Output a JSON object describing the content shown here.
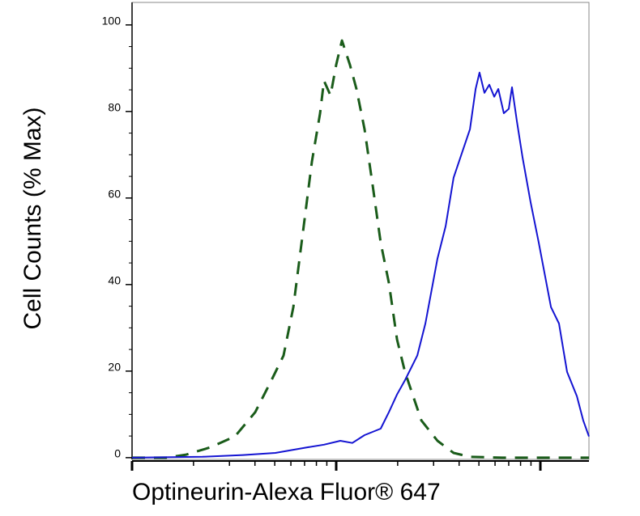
{
  "chart_data": {
    "type": "line",
    "xlabel": "Optineurin-Alexa Fluor® 647",
    "ylabel": "Cell Counts (% Max)",
    "xlim": [
      0,
      2.238
    ],
    "xticks": [
      0,
      1,
      2
    ],
    "xtick_labels": false,
    "xminorticks": [
      0.301,
      0.477,
      0.602,
      0.699,
      0.778,
      0.845,
      0.903,
      0.954,
      1.301,
      1.477,
      1.602,
      1.699,
      1.778,
      1.845,
      1.903,
      1.954
    ],
    "ylim": [
      -0.4,
      105.2
    ],
    "yticks": [
      0,
      20,
      40,
      60,
      80,
      100
    ],
    "yminorticks": [
      5,
      10,
      15,
      25,
      30,
      35,
      45,
      50,
      55,
      65,
      70,
      75,
      85,
      90,
      95
    ],
    "series": [
      {
        "color": "#1a5c1a",
        "dashed": true,
        "x": [
          0,
          0.167,
          0.266,
          0.385,
          0.504,
          0.603,
          0.683,
          0.742,
          0.79,
          0.841,
          0.881,
          0.921,
          0.94,
          0.972,
          1.0,
          1.028,
          1.067,
          1.099,
          1.139,
          1.179,
          1.218,
          1.258,
          1.298,
          1.337,
          1.377,
          1.417,
          1.496,
          1.575,
          1.655,
          1.813,
          2.238
        ],
        "values": [
          0,
          0,
          0.7,
          2.4,
          4.9,
          10.5,
          17.9,
          23.6,
          34.8,
          53.5,
          68.4,
          79.6,
          87.1,
          83.7,
          90.8,
          96.4,
          90.8,
          85.2,
          75.9,
          62.8,
          49.7,
          40.4,
          27.3,
          19.8,
          14.2,
          8.6,
          3.9,
          1.1,
          0.2,
          0,
          0
        ]
      },
      {
        "color": "#1414d2",
        "dashed": false,
        "x": [
          0,
          0.345,
          0.544,
          0.702,
          0.861,
          0.94,
          1.02,
          1.079,
          1.139,
          1.218,
          1.258,
          1.298,
          1.337,
          1.397,
          1.437,
          1.496,
          1.536,
          1.575,
          1.615,
          1.655,
          1.683,
          1.702,
          1.726,
          1.75,
          1.774,
          1.794,
          1.821,
          1.845,
          1.861,
          1.885,
          1.913,
          1.952,
          1.992,
          2.052,
          2.091,
          2.131,
          2.179,
          2.21,
          2.238
        ],
        "values": [
          0,
          0.2,
          0.6,
          1.1,
          2.4,
          3.0,
          3.9,
          3.4,
          5.2,
          6.7,
          10.5,
          14.6,
          17.9,
          23.6,
          31.0,
          46.0,
          53.5,
          64.7,
          70.3,
          75.9,
          85.2,
          89.0,
          84.3,
          86.2,
          83.4,
          85.2,
          79.6,
          80.6,
          85.6,
          77.8,
          69.3,
          59.1,
          49.7,
          34.8,
          31.0,
          19.8,
          14.2,
          8.6,
          4.9
        ]
      }
    ]
  }
}
